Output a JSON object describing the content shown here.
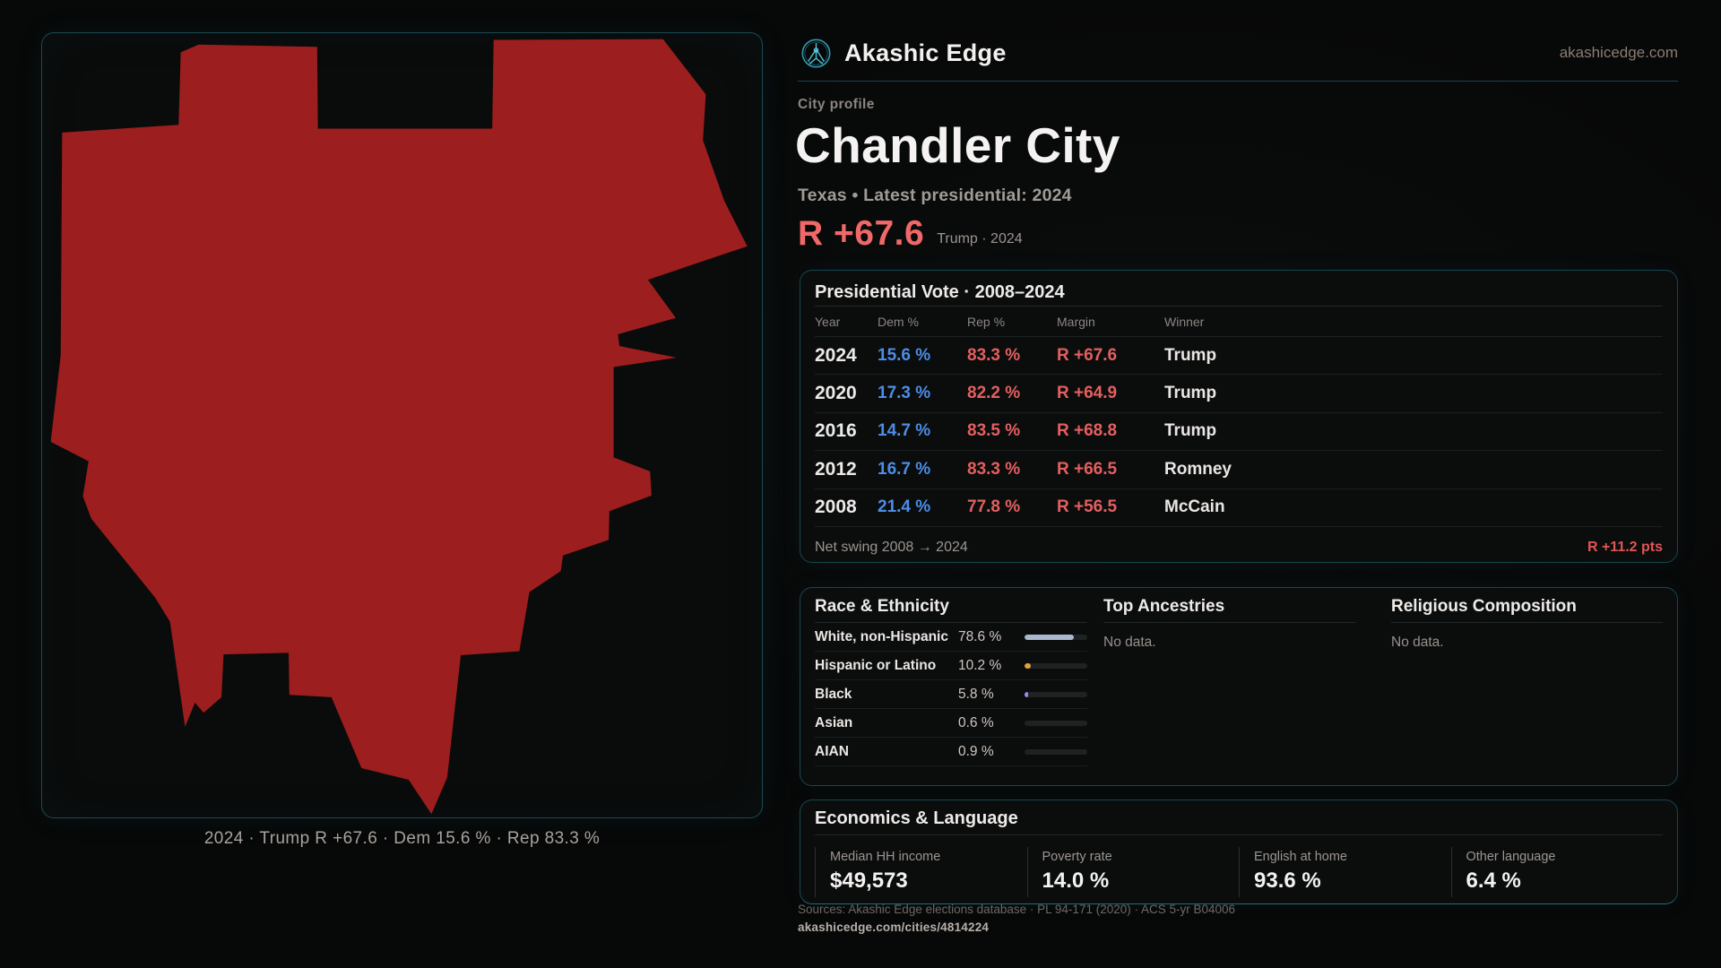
{
  "brand": {
    "name": "Akashic Edge",
    "domain": "akashicedge.com"
  },
  "profile": {
    "kicker": "City profile",
    "title": "Chandler City",
    "subtitle": "Texas • Latest presidential: 2024",
    "headline_margin": "R +67.6",
    "headline_note": "Trump · 2024",
    "margin_color": "#f06868"
  },
  "map": {
    "caption": "2024 · Trump R +67.6 · Dem 15.6 % · Rep 83.3 %",
    "fill_color": "#9c1e1e",
    "year": "2024"
  },
  "vote_table": {
    "title": "Presidential Vote · 2008–2024",
    "columns": {
      "year": "Year",
      "dem": "Dem %",
      "rep": "Rep %",
      "margin": "Margin",
      "winner": "Winner"
    },
    "rows": [
      {
        "year": "2024",
        "dem": "15.6 %",
        "rep": "83.3 %",
        "margin": "R +67.6",
        "winner": "Trump"
      },
      {
        "year": "2020",
        "dem": "17.3 %",
        "rep": "82.2 %",
        "margin": "R +64.9",
        "winner": "Trump"
      },
      {
        "year": "2016",
        "dem": "14.7 %",
        "rep": "83.5 %",
        "margin": "R +68.8",
        "winner": "Trump"
      },
      {
        "year": "2012",
        "dem": "16.7 %",
        "rep": "83.3 %",
        "margin": "R +66.5",
        "winner": "Romney"
      },
      {
        "year": "2008",
        "dem": "21.4 %",
        "rep": "77.8 %",
        "margin": "R +56.5",
        "winner": "McCain"
      }
    ],
    "dem_color": "#4c8de8",
    "rep_color": "#e55f5f",
    "net_swing_label": "Net swing 2008 → 2024",
    "net_swing_value": "R +11.2 pts"
  },
  "race": {
    "title": "Race & Ethnicity",
    "rows": [
      {
        "label": "White, non-Hispanic",
        "value": "78.6 %",
        "pct": 78.6,
        "color": "#a9b8cc"
      },
      {
        "label": "Hispanic or Latino",
        "value": "10.2 %",
        "pct": 10.2,
        "color": "#e2a13a"
      },
      {
        "label": "Black",
        "value": "5.8 %",
        "pct": 5.8,
        "color": "#9b8cf2"
      },
      {
        "label": "Asian",
        "value": "0.6 %",
        "pct": 0.6,
        "color": "#a9b8cc"
      },
      {
        "label": "AIAN",
        "value": "0.9 %",
        "pct": 0.9,
        "color": "#a9b8cc"
      }
    ]
  },
  "ancestries": {
    "title": "Top Ancestries",
    "empty": "No data."
  },
  "religion": {
    "title": "Religious Composition",
    "empty": "No data."
  },
  "economics": {
    "title": "Economics & Language",
    "stats": [
      {
        "label": "Median HH income",
        "value": "$49,573"
      },
      {
        "label": "Poverty rate",
        "value": "14.0 %"
      },
      {
        "label": "English at home",
        "value": "93.6 %"
      },
      {
        "label": "Other language",
        "value": "6.4 %"
      }
    ]
  },
  "footer": {
    "sources": "Sources: Akashic Edge elections database · PL 94-171 (2020) · ACS 5-yr B04006",
    "url": "akashicedge.com/cities/4814224"
  }
}
